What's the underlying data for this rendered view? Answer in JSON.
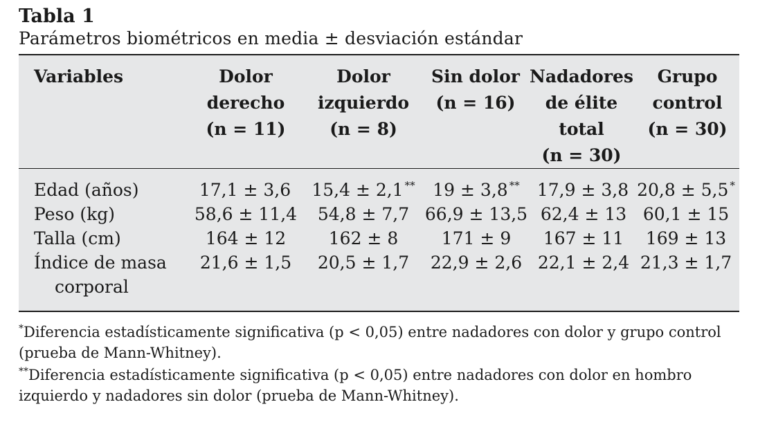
{
  "title": "Tabla 1",
  "subtitle": "Parámetros biométricos en media ± desviación estándar",
  "columns": [
    {
      "label": "Variables"
    },
    {
      "label": "Dolor\nderecho\n(n = 11)"
    },
    {
      "label": "Dolor\nizquierdo\n(n = 8)"
    },
    {
      "label": "Sin dolor\n(n = 16)"
    },
    {
      "label": "Nadadores\nde élite\ntotal\n(n = 30)"
    },
    {
      "label": "Grupo\ncontrol\n(n = 30)"
    }
  ],
  "rows": [
    {
      "variable": "Edad (años)",
      "cells": [
        {
          "value": "17,1 ± 3,6",
          "mark": ""
        },
        {
          "value": "15,4 ± 2,1",
          "mark": "**"
        },
        {
          "value": "19 ± 3,8",
          "mark": "**"
        },
        {
          "value": "17,9 ± 3,8",
          "mark": ""
        },
        {
          "value": "20,8 ± 5,5",
          "mark": "*"
        }
      ]
    },
    {
      "variable": "Peso (kg)",
      "cells": [
        {
          "value": "58,6 ± 11,4",
          "mark": ""
        },
        {
          "value": "54,8 ± 7,7",
          "mark": ""
        },
        {
          "value": "66,9 ± 13,5",
          "mark": ""
        },
        {
          "value": "62,4 ± 13",
          "mark": ""
        },
        {
          "value": "60,1 ± 15",
          "mark": ""
        }
      ]
    },
    {
      "variable": "Talla (cm)",
      "cells": [
        {
          "value": "164 ± 12",
          "mark": ""
        },
        {
          "value": "162 ± 8",
          "mark": ""
        },
        {
          "value": "171 ± 9",
          "mark": ""
        },
        {
          "value": "167 ± 11",
          "mark": ""
        },
        {
          "value": "169 ± 13",
          "mark": ""
        }
      ]
    },
    {
      "variable": "Índice de masa",
      "variable_line2": "corporal",
      "cells": [
        {
          "value": "21,6 ± 1,5",
          "mark": ""
        },
        {
          "value": "20,5 ± 1,7",
          "mark": ""
        },
        {
          "value": "22,9 ± 2,6",
          "mark": ""
        },
        {
          "value": "22,1 ± 2,4",
          "mark": ""
        },
        {
          "value": "21,3 ± 1,7",
          "mark": ""
        }
      ]
    }
  ],
  "notes": [
    {
      "mark": "*",
      "text": "Diferencia estadísticamente significativa (p < 0,05) entre nadadores con dolor y grupo control (prueba de Mann-Whitney)."
    },
    {
      "mark": "**",
      "text": "Diferencia estadísticamente significativa (p < 0,05) entre nadadores con dolor en hombro izquierdo y nadadores sin dolor (prueba de Mann-Whitney)."
    }
  ]
}
